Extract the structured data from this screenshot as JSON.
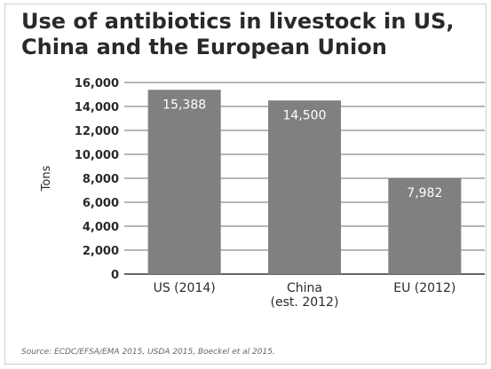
{
  "chart_data": {
    "type": "bar",
    "title": "Use of antibiotics in livestock in US,\nChina and the European Union",
    "xlabel": "",
    "ylabel": "Tons",
    "categories": [
      "US (2014)",
      "China\n(est. 2012)",
      "EU (2012)"
    ],
    "values": [
      15388,
      14500,
      7982
    ],
    "value_labels": [
      "15,388",
      "14,500",
      "7,982"
    ],
    "ylim": [
      0,
      16000
    ],
    "yticks": [
      0,
      2000,
      4000,
      6000,
      8000,
      10000,
      12000,
      14000,
      16000
    ],
    "ytick_labels": [
      "0",
      "2,000",
      "4,000",
      "6,000",
      "8,000",
      "10,000",
      "12,000",
      "14,000",
      "16,000"
    ],
    "grid": true,
    "bar_color": "#808080",
    "source": "Source: ECDC/EFSA/EMA 2015, USDA 2015, Boeckel et al 2015."
  }
}
